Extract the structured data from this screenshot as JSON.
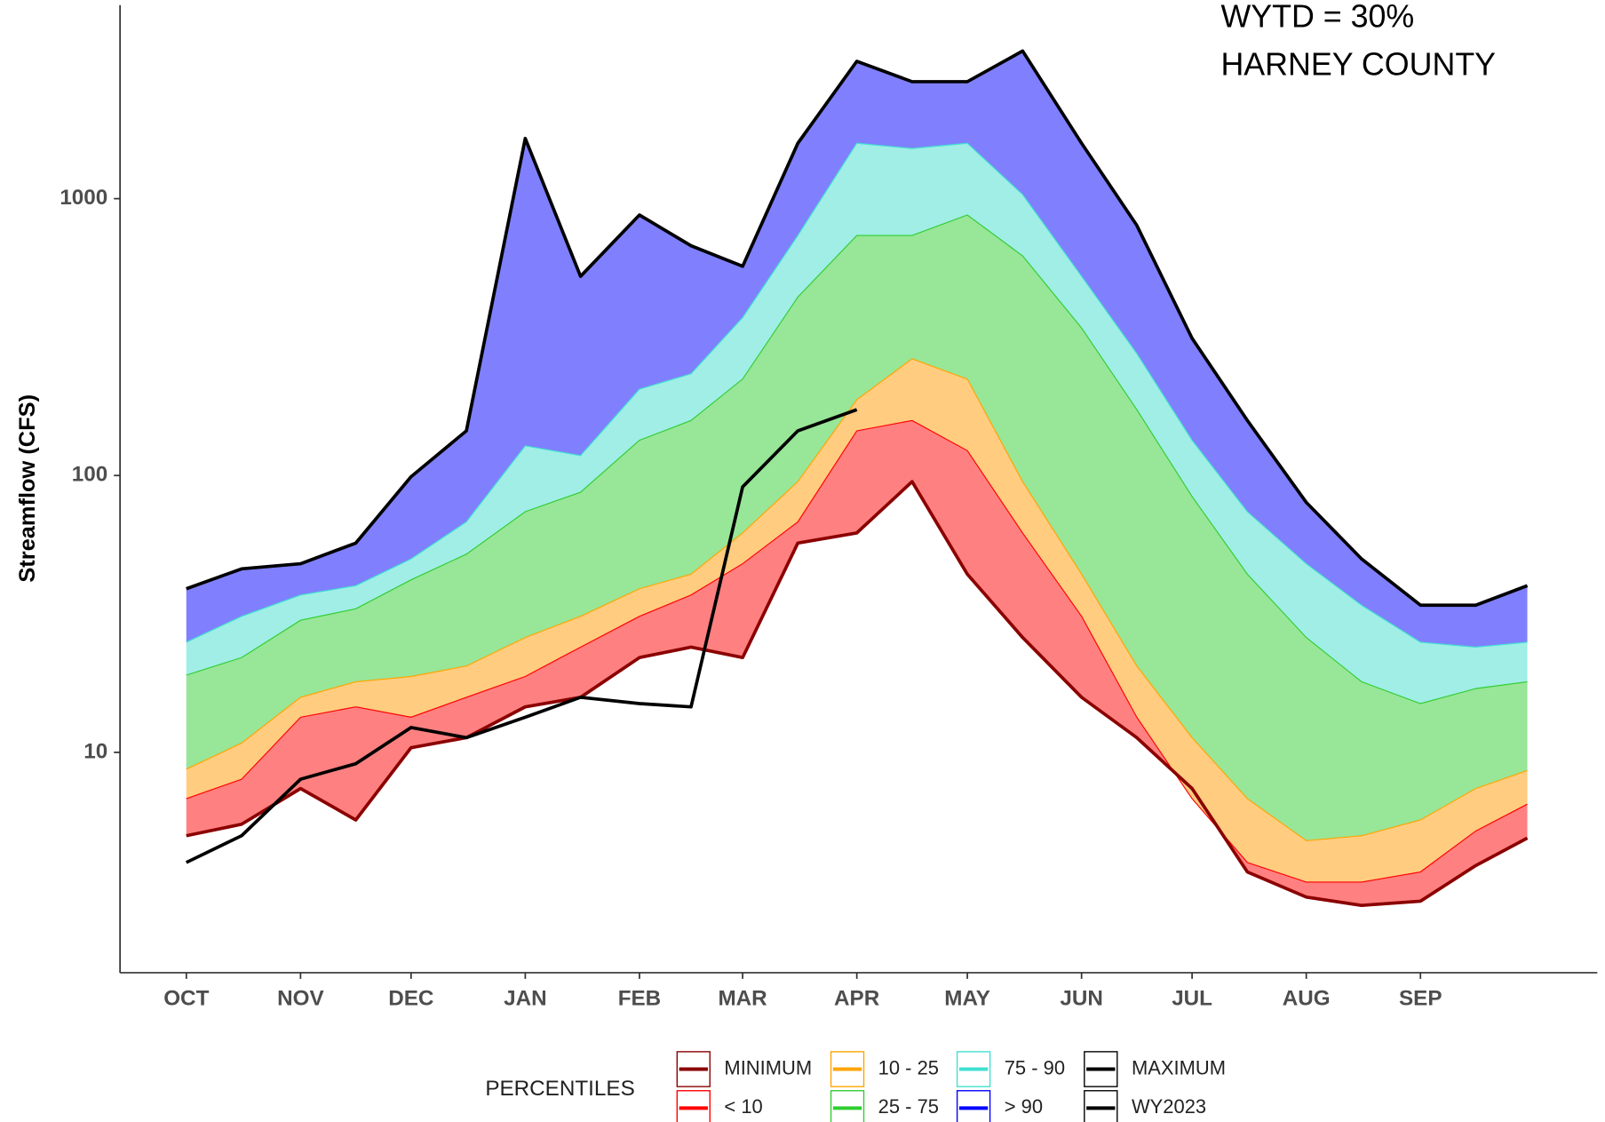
{
  "chart_data": {
    "type": "area",
    "annotations": [
      "WYTD = 30%",
      "HARNEY COUNTY"
    ],
    "y_label": "Streamflow (CFS)",
    "legend_title": "PERCENTILES",
    "log_y": true,
    "xlim": [
      -18,
      383
    ],
    "ylim": [
      1.6,
      5000
    ],
    "yticks": [
      10,
      100,
      1000
    ],
    "xticks": [
      {
        "value": 0,
        "label": "OCT"
      },
      {
        "value": 31,
        "label": "NOV"
      },
      {
        "value": 61,
        "label": "DEC"
      },
      {
        "value": 92,
        "label": "JAN"
      },
      {
        "value": 123,
        "label": "FEB"
      },
      {
        "value": 151,
        "label": "MAR"
      },
      {
        "value": 182,
        "label": "APR"
      },
      {
        "value": 212,
        "label": "MAY"
      },
      {
        "value": 243,
        "label": "JUN"
      },
      {
        "value": 273,
        "label": "JUL"
      },
      {
        "value": 304,
        "label": "AUG"
      },
      {
        "value": 335,
        "label": "SEP"
      }
    ],
    "x": [
      0,
      15,
      31,
      46,
      61,
      76,
      92,
      107,
      123,
      137,
      151,
      166,
      182,
      197,
      212,
      227,
      243,
      258,
      273,
      288,
      304,
      319,
      335,
      350,
      364
    ],
    "series": [
      {
        "name": "MINIMUM",
        "color": "#8b0000",
        "values": [
          5.0,
          5.5,
          7.4,
          5.7,
          10.4,
          11.3,
          14.6,
          15.8,
          22,
          24,
          22,
          57,
          62,
          95,
          44,
          26,
          15.8,
          11.3,
          7.4,
          3.7,
          3.0,
          2.8,
          2.9,
          3.9,
          4.9
        ]
      },
      {
        "name": "< 10",
        "color": "#ff0000",
        "fill": "#ff8080",
        "values": [
          6.8,
          8.0,
          13.4,
          14.6,
          13.4,
          15.8,
          18.8,
          24,
          31,
          37,
          48,
          68,
          145,
          158,
          123,
          62,
          31,
          13.4,
          6.8,
          4.0,
          3.4,
          3.4,
          3.7,
          5.2,
          6.5
        ]
      },
      {
        "name": "10 - 25",
        "color": "#ffa500",
        "fill": "#ffcc80",
        "values": [
          8.7,
          10.8,
          15.8,
          18,
          18.8,
          20.5,
          26,
          31,
          39,
          44,
          62,
          95,
          188,
          264,
          223,
          95,
          44,
          20.5,
          11.3,
          6.8,
          4.8,
          5.0,
          5.7,
          7.4,
          8.6
        ]
      },
      {
        "name": "25 - 75",
        "color": "#32cd32",
        "fill": "#98e698",
        "values": [
          19,
          22,
          30,
          33,
          42,
          52,
          74,
          87,
          134,
          158,
          223,
          441,
          736,
          736,
          873,
          621,
          341,
          173,
          84,
          44,
          26,
          18,
          15,
          17,
          18
        ]
      },
      {
        "name": "75 - 90",
        "color": "#40e0d0",
        "fill": "#a0eee6",
        "values": [
          25,
          31,
          37,
          40,
          50,
          68,
          128,
          118,
          205,
          233,
          372,
          736,
          1585,
          1518,
          1585,
          1035,
          524,
          276,
          134,
          74,
          48,
          34,
          25,
          24,
          25
        ]
      },
      {
        "name": "> 90",
        "color": "#0000ff",
        "fill": "#8080ff"
      },
      {
        "name": "MAXIMUM",
        "color": "#000000",
        "values": [
          39,
          46,
          48,
          57,
          99,
          145,
          1650,
          524,
          873,
          676,
          570,
          1585,
          3135,
          2645,
          2645,
          3414,
          1585,
          801,
          313,
          158,
          80,
          50,
          34,
          34,
          40
        ]
      },
      {
        "name": "WY2023",
        "color": "#000000",
        "values": [
          4.0,
          5.0,
          8.0,
          9.1,
          12.3,
          11.3,
          13.4,
          15.8,
          15,
          14.6,
          91,
          145,
          173,
          null,
          null,
          null,
          null,
          null,
          null,
          null,
          null,
          null,
          null,
          null,
          null
        ]
      }
    ]
  }
}
